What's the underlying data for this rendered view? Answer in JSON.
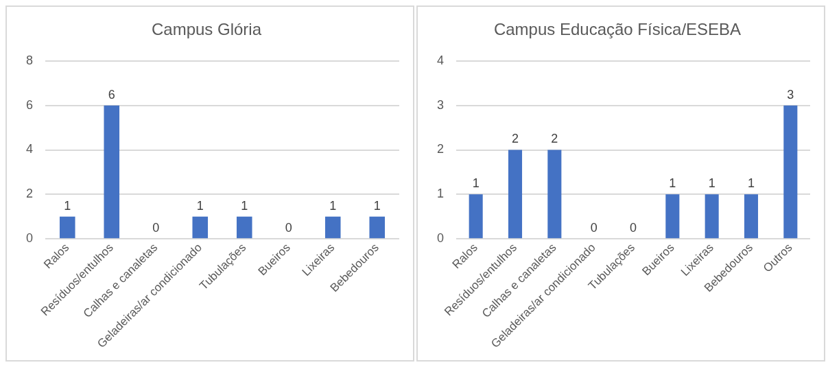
{
  "chart_data": [
    {
      "type": "bar",
      "title": "Campus Glória",
      "categories": [
        "Ralos",
        "Resíduos/entulhos",
        "Calhas e canaletas",
        "Geladeiras/ar condicionado",
        "Tubulações",
        "Bueiros",
        "Lixeiras",
        "Bebedouros"
      ],
      "values": [
        1,
        6,
        0,
        1,
        1,
        0,
        1,
        1
      ],
      "color": "#4472c4",
      "ylim": [
        0,
        8
      ],
      "yticks": [
        0,
        2,
        4,
        6,
        8
      ],
      "grid": "y",
      "data_labels": true
    },
    {
      "type": "bar",
      "title": "Campus Educação Física/ESEBA",
      "categories": [
        "Ralos",
        "Resíduos/entulhos",
        "Calhas e canaletas",
        "Geladeiras/ar condicionado",
        "Tubulações",
        "Bueiros",
        "Lixeiras",
        "Bebedouros",
        "Outros"
      ],
      "values": [
        1,
        2,
        2,
        0,
        0,
        1,
        1,
        1,
        3
      ],
      "color": "#4472c4",
      "ylim": [
        0,
        4
      ],
      "yticks": [
        0,
        1,
        2,
        3,
        4
      ],
      "grid": "y",
      "data_labels": true
    }
  ]
}
